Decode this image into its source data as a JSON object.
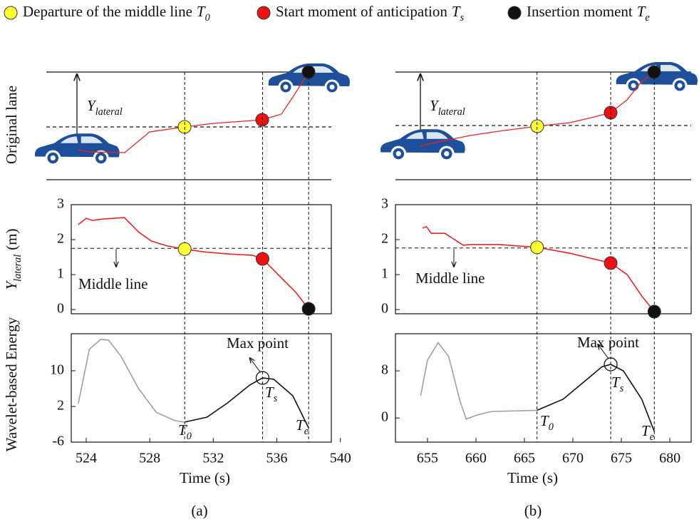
{
  "legend": [
    {
      "label": "Departure of the middle line",
      "symbol": "T",
      "subscript": "0",
      "color": "#ffff33"
    },
    {
      "label": "Start moment of anticipation",
      "symbol": "T",
      "subscript": "s",
      "color": "#ee1111"
    },
    {
      "label": "Insertion moment",
      "symbol": "T",
      "subscript": "e",
      "color": "#111111"
    }
  ],
  "lane_panels": [
    {
      "ylabel": "Original lane",
      "annotation": {
        "symbol": "Y",
        "subscript": "lateral"
      }
    },
    {
      "annotation": {
        "symbol": "Y",
        "subscript": "lateral"
      }
    }
  ],
  "chart_data": [
    {
      "type": "line",
      "ylabel": {
        "symbol": "Y",
        "subscript": "lateral",
        "unit": "(m)"
      },
      "xlim": [
        523.06,
        539.43
      ],
      "ylim": [
        -0.12,
        3
      ],
      "yticks": [
        0,
        1,
        2,
        3
      ],
      "hline": 1.75,
      "annotations": [
        {
          "text": "Middle line"
        }
      ],
      "series": [
        {
          "color": "#ee2222",
          "x": [
            523.5,
            524,
            524.4,
            525.1,
            526.4,
            527.3,
            528.1,
            529.1,
            530.2,
            531.4,
            532.9,
            534.5,
            535.1,
            536.3,
            537.2,
            538.0
          ],
          "values": [
            2.43,
            2.61,
            2.55,
            2.59,
            2.63,
            2.22,
            1.96,
            1.82,
            1.73,
            1.65,
            1.59,
            1.55,
            1.45,
            0.9,
            0.49,
            0.02
          ]
        }
      ],
      "markers": {
        "x": [
          530.2,
          535.1,
          538.0
        ],
        "values": [
          1.73,
          1.45,
          0.02
        ],
        "colors": [
          "#ffff33",
          "#ee1111",
          "#111111"
        ]
      }
    },
    {
      "type": "line",
      "ylabel": "Wavelet-based Energy",
      "xlabel": "Time (s)",
      "xlim": [
        523.06,
        539.43
      ],
      "ylim": [
        -6,
        18.3
      ],
      "xticks": [
        524,
        528,
        532,
        536,
        540
      ],
      "yticks": [
        -6,
        2,
        10
      ],
      "annotations": [
        {
          "text": "Max point"
        },
        {
          "symbol": "T",
          "subscript": "0"
        },
        {
          "symbol": "T",
          "subscript": "s"
        },
        {
          "symbol": "T",
          "subscript": "e"
        }
      ],
      "series": [
        {
          "color": "#a0a0a0",
          "x": [
            523.5,
            524.2,
            524.9,
            525.4,
            526.2,
            527.3,
            528.4,
            529.6,
            530.2
          ],
          "values": [
            2.6,
            14.8,
            17.0,
            16.9,
            13.2,
            6.0,
            0.7,
            -1.2,
            -1.5
          ]
        },
        {
          "color": "#111111",
          "x": [
            530.2,
            531.6,
            532.9,
            534.3,
            535.1,
            535.8,
            537.0,
            538.0
          ],
          "values": [
            -1.5,
            -0.4,
            2.8,
            6.8,
            8.4,
            8.1,
            4.4,
            -2.8
          ]
        }
      ]
    },
    {
      "type": "line",
      "xlim": [
        651.7,
        682.2
      ],
      "ylim": [
        -0.12,
        3
      ],
      "yticks": [
        0,
        1,
        2,
        3
      ],
      "hline": 1.76,
      "annotations": [
        {
          "text": "Middle line"
        }
      ],
      "series": [
        {
          "color": "#ee2222",
          "x": [
            654.5,
            654.9,
            655.4,
            656.8,
            658.7,
            659.4,
            662.4,
            666.3,
            669.7,
            673.9,
            675.6,
            677.1,
            678.4
          ],
          "values": [
            2.33,
            2.37,
            2.18,
            2.18,
            1.84,
            1.86,
            1.86,
            1.78,
            1.61,
            1.33,
            1.0,
            0.39,
            -0.06
          ]
        }
      ],
      "markers": {
        "x": [
          666.3,
          673.9,
          678.4
        ],
        "values": [
          1.78,
          1.33,
          -0.06
        ],
        "colors": [
          "#ffff33",
          "#ee1111",
          "#111111"
        ]
      }
    },
    {
      "type": "line",
      "xlabel": "Time (s)",
      "xlim": [
        651.7,
        682.2
      ],
      "ylim": [
        -4.1,
        14.3
      ],
      "xticks": [
        655,
        660,
        665,
        670,
        675,
        680
      ],
      "yticks": [
        0,
        8
      ],
      "annotations": [
        {
          "text": "Max point"
        },
        {
          "symbol": "T",
          "subscript": "0"
        },
        {
          "symbol": "T",
          "subscript": "s"
        },
        {
          "symbol": "T",
          "subscript": "e"
        }
      ],
      "series": [
        {
          "color": "#a0a0a0",
          "x": [
            654.3,
            655.0,
            656.1,
            657.2,
            658.3,
            659.0,
            660.1,
            661.6,
            666.3
          ],
          "values": [
            3.8,
            9.8,
            12.8,
            10.4,
            3.2,
            -0.2,
            0.5,
            1.1,
            1.3
          ]
        },
        {
          "color": "#111111",
          "x": [
            666.3,
            669.0,
            671.2,
            673.0,
            673.9,
            675.2,
            677.1,
            678.4
          ],
          "values": [
            1.3,
            3.2,
            6.2,
            8.7,
            9.1,
            8.0,
            3.2,
            -2.3
          ]
        }
      ]
    }
  ],
  "captions": [
    "(a)",
    "(b)"
  ]
}
